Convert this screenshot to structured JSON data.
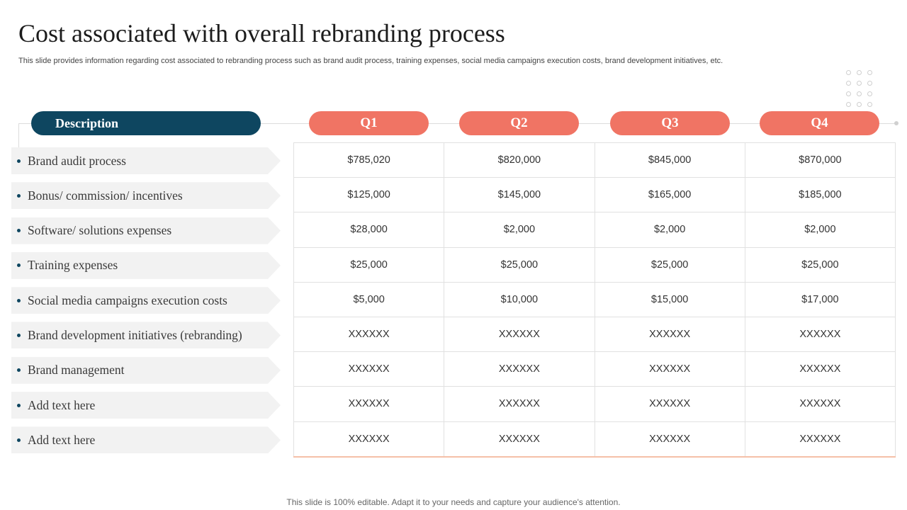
{
  "title": "Cost associated with overall rebranding process",
  "subtitle": "This slide provides information regarding cost associated to rebranding process such as brand audit process,  training expenses, social media campaigns execution costs, brand development initiatives, etc.",
  "header": {
    "description": "Description",
    "quarters": [
      "Q1",
      "Q2",
      "Q3",
      "Q4"
    ]
  },
  "rows": [
    {
      "label": "Brand audit process",
      "values": [
        "$785,020",
        "$820,000",
        "$845,000",
        "$870,000"
      ]
    },
    {
      "label": "Bonus/ commission/ incentives",
      "values": [
        "$125,000",
        "$145,000",
        "$165,000",
        "$185,000"
      ]
    },
    {
      "label": "Software/ solutions  expenses",
      "values": [
        "$28,000",
        "$2,000",
        "$2,000",
        "$2,000"
      ]
    },
    {
      "label": "Training expenses",
      "values": [
        "$25,000",
        "$25,000",
        "$25,000",
        "$25,000"
      ]
    },
    {
      "label": "Social media campaigns execution costs",
      "values": [
        "$5,000",
        "$10,000",
        "$15,000",
        "$17,000"
      ]
    },
    {
      "label": "Brand development initiatives (rebranding)",
      "values": [
        "XXXXXX",
        "XXXXXX",
        "XXXXXX",
        "XXXXXX"
      ]
    },
    {
      "label": "Brand management",
      "values": [
        "XXXXXX",
        "XXXXXX",
        "XXXXXX",
        "XXXXXX"
      ]
    },
    {
      "label": "Add text here",
      "values": [
        "XXXXXX",
        "XXXXXX",
        "XXXXXX",
        "XXXXXX"
      ]
    },
    {
      "label": "Add text here",
      "values": [
        "XXXXXX",
        "XXXXXX",
        "XXXXXX",
        "XXXXXX"
      ]
    }
  ],
  "footer": "This slide is 100% editable. Adapt it to your needs and capture your audience's attention.",
  "colors": {
    "description_pill": "#0e4660",
    "quarter_pill": "#f07464",
    "row_bg": "#f2f2f2"
  }
}
